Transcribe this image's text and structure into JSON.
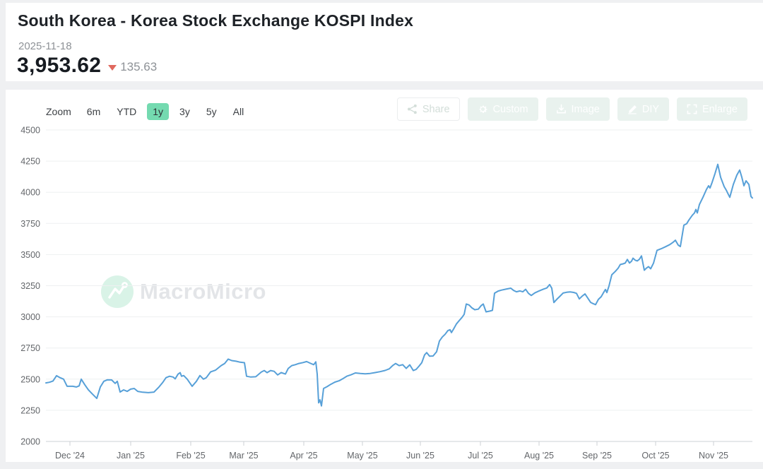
{
  "header": {
    "title": "South Korea - Korea Stock Exchange KOSPI Index",
    "date": "2025-11-18",
    "value": "3,953.62",
    "change": "135.63",
    "change_direction": "down",
    "change_color": "#e0685e"
  },
  "toolbar": {
    "zoom_label": "Zoom",
    "ranges": [
      {
        "label": "6m",
        "active": false
      },
      {
        "label": "YTD",
        "active": false
      },
      {
        "label": "1y",
        "active": true
      },
      {
        "label": "3y",
        "active": false
      },
      {
        "label": "5y",
        "active": false
      },
      {
        "label": "All",
        "active": false
      }
    ],
    "active_range_bg": "#74dab0",
    "actions": [
      {
        "label": "Share",
        "icon": "share-icon",
        "style": "outline"
      },
      {
        "label": "Custom",
        "icon": "gear-icon",
        "style": "solid"
      },
      {
        "label": "Image",
        "icon": "download-icon",
        "style": "solid"
      },
      {
        "label": "DIY",
        "icon": "pencil-icon",
        "style": "solid"
      },
      {
        "label": "Enlarge",
        "icon": "expand-icon",
        "style": "solid"
      }
    ]
  },
  "watermark": {
    "text": "MacroMicro"
  },
  "chart_data": {
    "type": "line",
    "title": "South Korea - Korea Stock Exchange KOSPI Index",
    "series_name": "KOSPI Index",
    "line_color": "#57a0d8",
    "grid": "horizontal",
    "legend": "none",
    "ylim": [
      2000,
      4500
    ],
    "y_tick_step": 250,
    "y_tick_labels": [
      "2000",
      "2250",
      "2500",
      "2750",
      "3000",
      "3250",
      "3500",
      "3750",
      "4000",
      "4250",
      "4500"
    ],
    "x_range": [
      "2024-11-18",
      "2025-11-18"
    ],
    "x_ticks": [
      {
        "label": "Dec '24",
        "t": 0.034
      },
      {
        "label": "Jan '25",
        "t": 0.12
      },
      {
        "label": "Feb '25",
        "t": 0.205
      },
      {
        "label": "Mar '25",
        "t": 0.28
      },
      {
        "label": "Apr '25",
        "t": 0.365
      },
      {
        "label": "May '25",
        "t": 0.448
      },
      {
        "label": "Jun '25",
        "t": 0.53
      },
      {
        "label": "Jul '25",
        "t": 0.615
      },
      {
        "label": "Aug '25",
        "t": 0.698
      },
      {
        "label": "Sep '25",
        "t": 0.78
      },
      {
        "label": "Oct '25",
        "t": 0.863
      },
      {
        "label": "Nov '25",
        "t": 0.945
      }
    ],
    "points": [
      [
        0.0,
        2470
      ],
      [
        0.005,
        2475
      ],
      [
        0.01,
        2485
      ],
      [
        0.015,
        2528
      ],
      [
        0.02,
        2512
      ],
      [
        0.025,
        2500
      ],
      [
        0.03,
        2443
      ],
      [
        0.038,
        2443
      ],
      [
        0.043,
        2437
      ],
      [
        0.047,
        2446
      ],
      [
        0.05,
        2500
      ],
      [
        0.055,
        2455
      ],
      [
        0.06,
        2415
      ],
      [
        0.065,
        2385
      ],
      [
        0.072,
        2345
      ],
      [
        0.077,
        2437
      ],
      [
        0.082,
        2483
      ],
      [
        0.087,
        2495
      ],
      [
        0.093,
        2494
      ],
      [
        0.098,
        2466
      ],
      [
        0.101,
        2483
      ],
      [
        0.105,
        2397
      ],
      [
        0.11,
        2414
      ],
      [
        0.115,
        2402
      ],
      [
        0.12,
        2420
      ],
      [
        0.125,
        2425
      ],
      [
        0.13,
        2402
      ],
      [
        0.137,
        2395
      ],
      [
        0.145,
        2392
      ],
      [
        0.153,
        2396
      ],
      [
        0.16,
        2437
      ],
      [
        0.165,
        2471
      ],
      [
        0.17,
        2512
      ],
      [
        0.175,
        2523
      ],
      [
        0.18,
        2517
      ],
      [
        0.183,
        2502
      ],
      [
        0.187,
        2540
      ],
      [
        0.19,
        2552
      ],
      [
        0.192,
        2523
      ],
      [
        0.195,
        2529
      ],
      [
        0.2,
        2500
      ],
      [
        0.207,
        2443
      ],
      [
        0.213,
        2483
      ],
      [
        0.218,
        2529
      ],
      [
        0.223,
        2500
      ],
      [
        0.227,
        2512
      ],
      [
        0.233,
        2558
      ],
      [
        0.24,
        2572
      ],
      [
        0.248,
        2609
      ],
      [
        0.253,
        2626
      ],
      [
        0.258,
        2661
      ],
      [
        0.263,
        2649
      ],
      [
        0.269,
        2644
      ],
      [
        0.275,
        2636
      ],
      [
        0.281,
        2632
      ],
      [
        0.284,
        2523
      ],
      [
        0.29,
        2517
      ],
      [
        0.297,
        2519
      ],
      [
        0.305,
        2558
      ],
      [
        0.309,
        2569
      ],
      [
        0.313,
        2552
      ],
      [
        0.318,
        2569
      ],
      [
        0.323,
        2563
      ],
      [
        0.328,
        2534
      ],
      [
        0.333,
        2553
      ],
      [
        0.339,
        2541
      ],
      [
        0.343,
        2586
      ],
      [
        0.348,
        2609
      ],
      [
        0.353,
        2616
      ],
      [
        0.358,
        2626
      ],
      [
        0.364,
        2633
      ],
      [
        0.369,
        2641
      ],
      [
        0.375,
        2626
      ],
      [
        0.379,
        2616
      ],
      [
        0.382,
        2639
      ],
      [
        0.384,
        2540
      ],
      [
        0.386,
        2310
      ],
      [
        0.388,
        2334
      ],
      [
        0.39,
        2285
      ],
      [
        0.393,
        2425
      ],
      [
        0.398,
        2440
      ],
      [
        0.403,
        2458
      ],
      [
        0.409,
        2476
      ],
      [
        0.415,
        2487
      ],
      [
        0.421,
        2506
      ],
      [
        0.426,
        2524
      ],
      [
        0.432,
        2535
      ],
      [
        0.438,
        2550
      ],
      [
        0.445,
        2546
      ],
      [
        0.452,
        2543
      ],
      [
        0.459,
        2546
      ],
      [
        0.466,
        2553
      ],
      [
        0.473,
        2560
      ],
      [
        0.48,
        2570
      ],
      [
        0.486,
        2583
      ],
      [
        0.491,
        2610
      ],
      [
        0.495,
        2626
      ],
      [
        0.5,
        2609
      ],
      [
        0.505,
        2616
      ],
      [
        0.51,
        2586
      ],
      [
        0.515,
        2615
      ],
      [
        0.52,
        2569
      ],
      [
        0.524,
        2578
      ],
      [
        0.528,
        2604
      ],
      [
        0.532,
        2632
      ],
      [
        0.536,
        2695
      ],
      [
        0.539,
        2713
      ],
      [
        0.543,
        2684
      ],
      [
        0.548,
        2686
      ],
      [
        0.553,
        2720
      ],
      [
        0.557,
        2806
      ],
      [
        0.561,
        2838
      ],
      [
        0.565,
        2860
      ],
      [
        0.569,
        2890
      ],
      [
        0.572,
        2897
      ],
      [
        0.574,
        2874
      ],
      [
        0.577,
        2902
      ],
      [
        0.581,
        2943
      ],
      [
        0.585,
        2970
      ],
      [
        0.589,
        2996
      ],
      [
        0.592,
        3020
      ],
      [
        0.595,
        3103
      ],
      [
        0.599,
        3095
      ],
      [
        0.603,
        3072
      ],
      [
        0.607,
        3057
      ],
      [
        0.612,
        3062
      ],
      [
        0.616,
        3090
      ],
      [
        0.619,
        3103
      ],
      [
        0.623,
        3040
      ],
      [
        0.628,
        3046
      ],
      [
        0.632,
        3052
      ],
      [
        0.635,
        3190
      ],
      [
        0.64,
        3207
      ],
      [
        0.645,
        3215
      ],
      [
        0.651,
        3222
      ],
      [
        0.658,
        3230
      ],
      [
        0.662,
        3212
      ],
      [
        0.666,
        3201
      ],
      [
        0.671,
        3208
      ],
      [
        0.675,
        3201
      ],
      [
        0.679,
        3221
      ],
      [
        0.683,
        3189
      ],
      [
        0.687,
        3172
      ],
      [
        0.692,
        3192
      ],
      [
        0.698,
        3208
      ],
      [
        0.704,
        3222
      ],
      [
        0.709,
        3232
      ],
      [
        0.713,
        3259
      ],
      [
        0.716,
        3230
      ],
      [
        0.719,
        3115
      ],
      [
        0.723,
        3140
      ],
      [
        0.727,
        3162
      ],
      [
        0.732,
        3191
      ],
      [
        0.737,
        3197
      ],
      [
        0.742,
        3200
      ],
      [
        0.747,
        3196
      ],
      [
        0.751,
        3189
      ],
      [
        0.755,
        3144
      ],
      [
        0.759,
        3166
      ],
      [
        0.763,
        3184
      ],
      [
        0.767,
        3150
      ],
      [
        0.771,
        3116
      ],
      [
        0.775,
        3105
      ],
      [
        0.778,
        3098
      ],
      [
        0.782,
        3140
      ],
      [
        0.786,
        3162
      ],
      [
        0.789,
        3192
      ],
      [
        0.792,
        3220
      ],
      [
        0.794,
        3195
      ],
      [
        0.797,
        3248
      ],
      [
        0.801,
        3338
      ],
      [
        0.806,
        3365
      ],
      [
        0.81,
        3391
      ],
      [
        0.813,
        3420
      ],
      [
        0.817,
        3426
      ],
      [
        0.82,
        3432
      ],
      [
        0.823,
        3461
      ],
      [
        0.826,
        3432
      ],
      [
        0.829,
        3447
      ],
      [
        0.831,
        3471
      ],
      [
        0.834,
        3455
      ],
      [
        0.837,
        3449
      ],
      [
        0.84,
        3462
      ],
      [
        0.843,
        3489
      ],
      [
        0.847,
        3374
      ],
      [
        0.85,
        3391
      ],
      [
        0.853,
        3403
      ],
      [
        0.856,
        3386
      ],
      [
        0.86,
        3431
      ],
      [
        0.865,
        3534
      ],
      [
        0.871,
        3547
      ],
      [
        0.877,
        3563
      ],
      [
        0.883,
        3580
      ],
      [
        0.888,
        3600
      ],
      [
        0.891,
        3615
      ],
      [
        0.895,
        3576
      ],
      [
        0.898,
        3564
      ],
      [
        0.903,
        3736
      ],
      [
        0.907,
        3748
      ],
      [
        0.91,
        3776
      ],
      [
        0.915,
        3816
      ],
      [
        0.918,
        3834
      ],
      [
        0.92,
        3862
      ],
      [
        0.922,
        3834
      ],
      [
        0.925,
        3902
      ],
      [
        0.93,
        3960
      ],
      [
        0.935,
        4023
      ],
      [
        0.938,
        4052
      ],
      [
        0.94,
        4034
      ],
      [
        0.943,
        4080
      ],
      [
        0.947,
        4149
      ],
      [
        0.951,
        4224
      ],
      [
        0.955,
        4121
      ],
      [
        0.96,
        4046
      ],
      [
        0.963,
        4017
      ],
      [
        0.965,
        3994
      ],
      [
        0.968,
        3960
      ],
      [
        0.973,
        4063
      ],
      [
        0.978,
        4138
      ],
      [
        0.982,
        4178
      ],
      [
        0.985,
        4121
      ],
      [
        0.988,
        4052
      ],
      [
        0.991,
        4092
      ],
      [
        0.995,
        4063
      ],
      [
        0.998,
        3966
      ],
      [
        1.0,
        3954
      ]
    ]
  }
}
